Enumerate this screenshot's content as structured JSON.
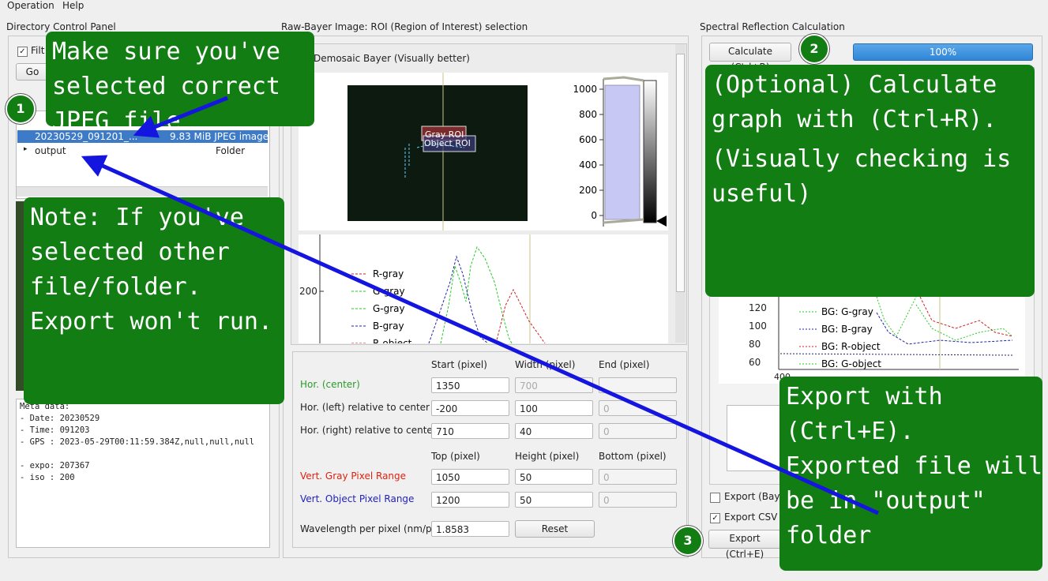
{
  "menu": [
    "Operation",
    "Help"
  ],
  "left": {
    "title": "Directory Control Panel",
    "filter": "Filt",
    "go": "Go",
    "tree": [
      {
        "name": "20230529_091201_...",
        "info": "9.83 MiB JPEG image"
      },
      {
        "name": "output",
        "info": "Folder"
      }
    ],
    "meta": [
      "Meta data:",
      "- Date: 20230529",
      "- Time: 091203",
      "- GPS : 2023-05-29T00:11:59.384Z,null,null,null",
      "",
      "- expo: 207367",
      "- iso : 200"
    ]
  },
  "middle": {
    "title": "Raw-Bayer Image: ROI (Region of Interest) selection",
    "demosaic": "Demosaic Bayer (Visually better)",
    "gray_roi": "Gray ROI",
    "object_roi": "Object ROI",
    "hist_ticks": [
      "1000",
      "800",
      "600",
      "400",
      "200",
      "0"
    ],
    "plot_tick": "200",
    "legend": [
      "R-gray",
      "G-gray",
      "G-gray",
      "B-gray",
      "R-object"
    ],
    "form": {
      "headers1": [
        "Start (pixel)",
        "Width (pixel)",
        "End (pixel)"
      ],
      "rows1": [
        {
          "label": "Hor. (center)",
          "values": [
            "1350",
            "700",
            ""
          ]
        },
        {
          "label": "Hor. (left) relative to center",
          "values": [
            "-200",
            "100",
            "0"
          ]
        },
        {
          "label": "Hor. (right) relative to center",
          "values": [
            "710",
            "40",
            "0"
          ]
        }
      ],
      "headers2": [
        "Top (pixel)",
        "Height (pixel)",
        "Bottom (pixel)"
      ],
      "rows2": [
        {
          "label": "Vert. Gray Pixel Range",
          "values": [
            "1050",
            "50",
            "0"
          ]
        },
        {
          "label": "Vert. Object Pixel Range",
          "values": [
            "1200",
            "50",
            "0"
          ]
        }
      ],
      "wavelength_label": "Wavelength per pixel (nm/px)",
      "wavelength": "1.8583",
      "reset": "Reset"
    }
  },
  "right": {
    "title": "Spectral Reflection Calculation",
    "calculate": "Calculate (Ctrl+R)",
    "progress": "100%",
    "yticks": [
      "120",
      "100",
      "80",
      "60"
    ],
    "xtick": "400",
    "legend": [
      "BG: G-gray",
      "BG: B-gray",
      "BG: R-object",
      "BG: G-object"
    ],
    "export_bayer": "Export (Baye",
    "export_csv": "Export CSV (",
    "export": "Export (Ctrl+E)"
  },
  "callouts": [
    {
      "step": "1",
      "lines": [
        "Make sure you've",
        "selected correct",
        "JPEG file"
      ]
    },
    {
      "lines": [
        "Note: If you've",
        "selected other",
        "file/folder.",
        "Export won't run."
      ]
    },
    {
      "step": "2",
      "lines": [
        "(Optional) Calculate",
        "graph with (Ctrl+R).",
        "(Visually checking is",
        "useful)"
      ]
    },
    {
      "step": "3",
      "lines": [
        "Export with",
        "(Ctrl+E).",
        "Exported file will",
        "be in \"output\"",
        "folder"
      ]
    }
  ]
}
